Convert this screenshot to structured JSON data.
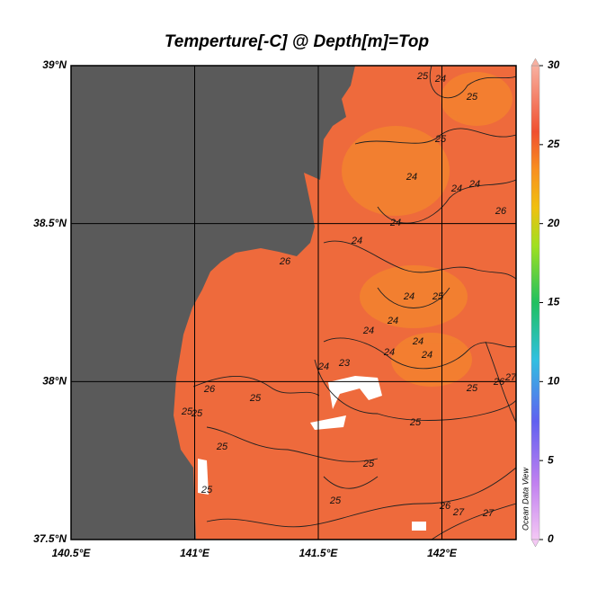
{
  "title": "Temperture[-C] @ Depth[m]=Top",
  "map": {
    "xlim": [
      140.5,
      142.3
    ],
    "ylim": [
      37.5,
      39
    ],
    "xticks": [
      {
        "value": 140.5,
        "label": "140.5°E"
      },
      {
        "value": 141,
        "label": "141°E"
      },
      {
        "value": 141.5,
        "label": "141.5°E"
      },
      {
        "value": 142,
        "label": "142°E"
      }
    ],
    "yticks": [
      {
        "value": 37.5,
        "label": "37.5°N"
      },
      {
        "value": 38,
        "label": "38°N"
      },
      {
        "value": 38.5,
        "label": "38.5°N"
      },
      {
        "value": 39,
        "label": "39°N"
      }
    ],
    "grid": true,
    "land_color": "#5a5a5a",
    "sea_color": "#ee6a3c"
  },
  "colorbar": {
    "range": [
      0,
      30
    ],
    "ticks": [
      0,
      5,
      10,
      15,
      20,
      25,
      30
    ],
    "label": "Ocean Data View"
  },
  "contour_labels": [
    25,
    24,
    25,
    25,
    24,
    24,
    24,
    26,
    24,
    24,
    26,
    24,
    25,
    24,
    24,
    24,
    24,
    23,
    24,
    24,
    25,
    26,
    27,
    25,
    26,
    25,
    25,
    25,
    25,
    25,
    25,
    26,
    27,
    27,
    25
  ]
}
